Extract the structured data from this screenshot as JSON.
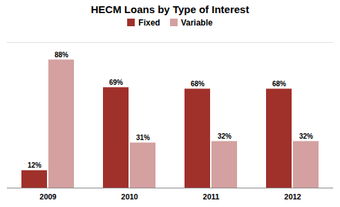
{
  "chart_data": {
    "type": "bar",
    "title": "HECM Loans by Type of Interest",
    "categories": [
      "2009",
      "2010",
      "2011",
      "2012"
    ],
    "series": [
      {
        "name": "Fixed",
        "color": "#A0302A",
        "values": [
          12,
          69,
          68,
          68
        ],
        "value_labels": [
          "12%",
          "69%",
          "68%",
          "68%"
        ]
      },
      {
        "name": "Variable",
        "color": "#D4A0A0",
        "values": [
          88,
          31,
          32,
          32
        ],
        "value_labels": [
          "88%",
          "31%",
          "32%",
          "32%"
        ]
      }
    ],
    "ylim": [
      0,
      100
    ],
    "yticks": [],
    "grid": false,
    "data_labels": true,
    "tick_labels": "x",
    "legend": "upper center"
  }
}
